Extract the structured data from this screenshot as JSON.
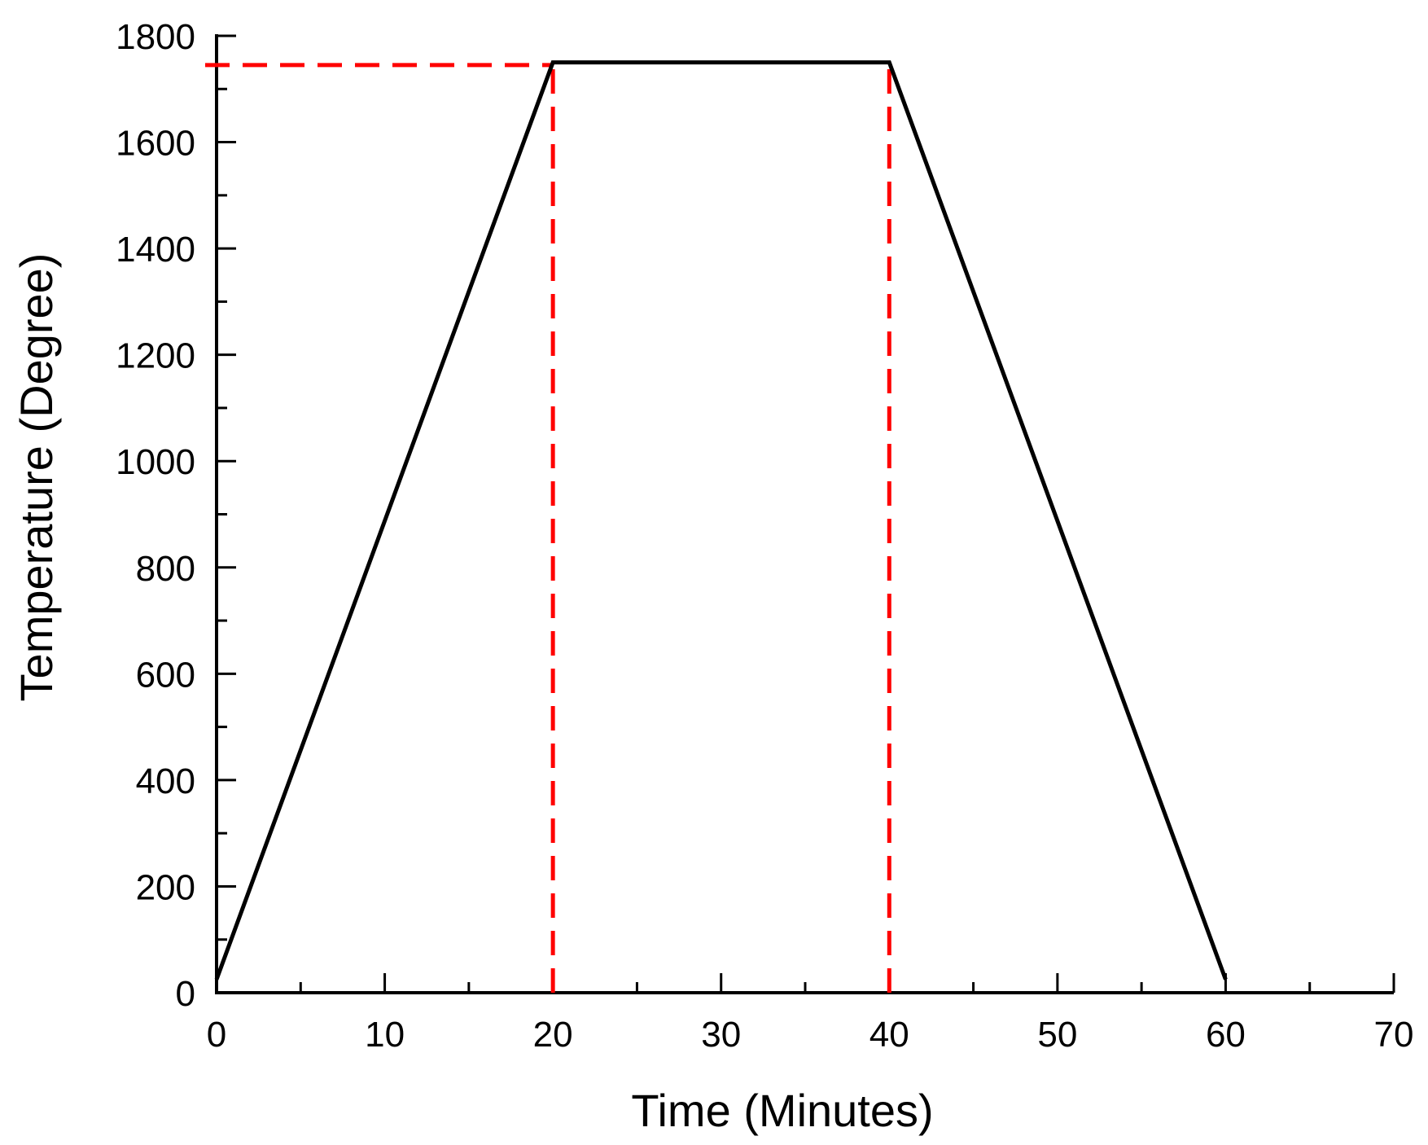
{
  "chart_data": {
    "type": "line",
    "title": "",
    "xlabel": "Time (Minutes)",
    "ylabel": "Temperature (Degree)",
    "xlim": [
      0,
      70
    ],
    "ylim": [
      0,
      1800
    ],
    "x_ticks": [
      0,
      10,
      20,
      30,
      40,
      50,
      60,
      70
    ],
    "x_tick_labels": [
      "0",
      "10",
      "20",
      "30",
      "40",
      "50",
      "60",
      "70"
    ],
    "x_minor_step": 5,
    "y_ticks": [
      0,
      200,
      400,
      600,
      800,
      1000,
      1200,
      1400,
      1600,
      1800
    ],
    "y_tick_labels": [
      "0",
      "200",
      "400",
      "600",
      "800",
      "1000",
      "1200",
      "1400",
      "1600",
      "1800"
    ],
    "y_minor_step": 100,
    "grid": false,
    "series": [
      {
        "color": "#000000",
        "style": "solid",
        "points": [
          [
            0,
            25
          ],
          [
            20,
            1750
          ],
          [
            40,
            1750
          ],
          [
            60,
            25
          ]
        ]
      }
    ],
    "reference_lines": [
      {
        "orientation": "horizontal",
        "y": 1745,
        "x_from": 0,
        "x_to": 20,
        "color": "#ff0000",
        "style": "dashed"
      },
      {
        "orientation": "vertical",
        "x": 20,
        "y_from": 0,
        "y_to": 1750,
        "color": "#ff0000",
        "style": "dashed"
      },
      {
        "orientation": "vertical",
        "x": 40,
        "y_from": 0,
        "y_to": 1740,
        "color": "#ff0000",
        "style": "dashed"
      }
    ]
  }
}
